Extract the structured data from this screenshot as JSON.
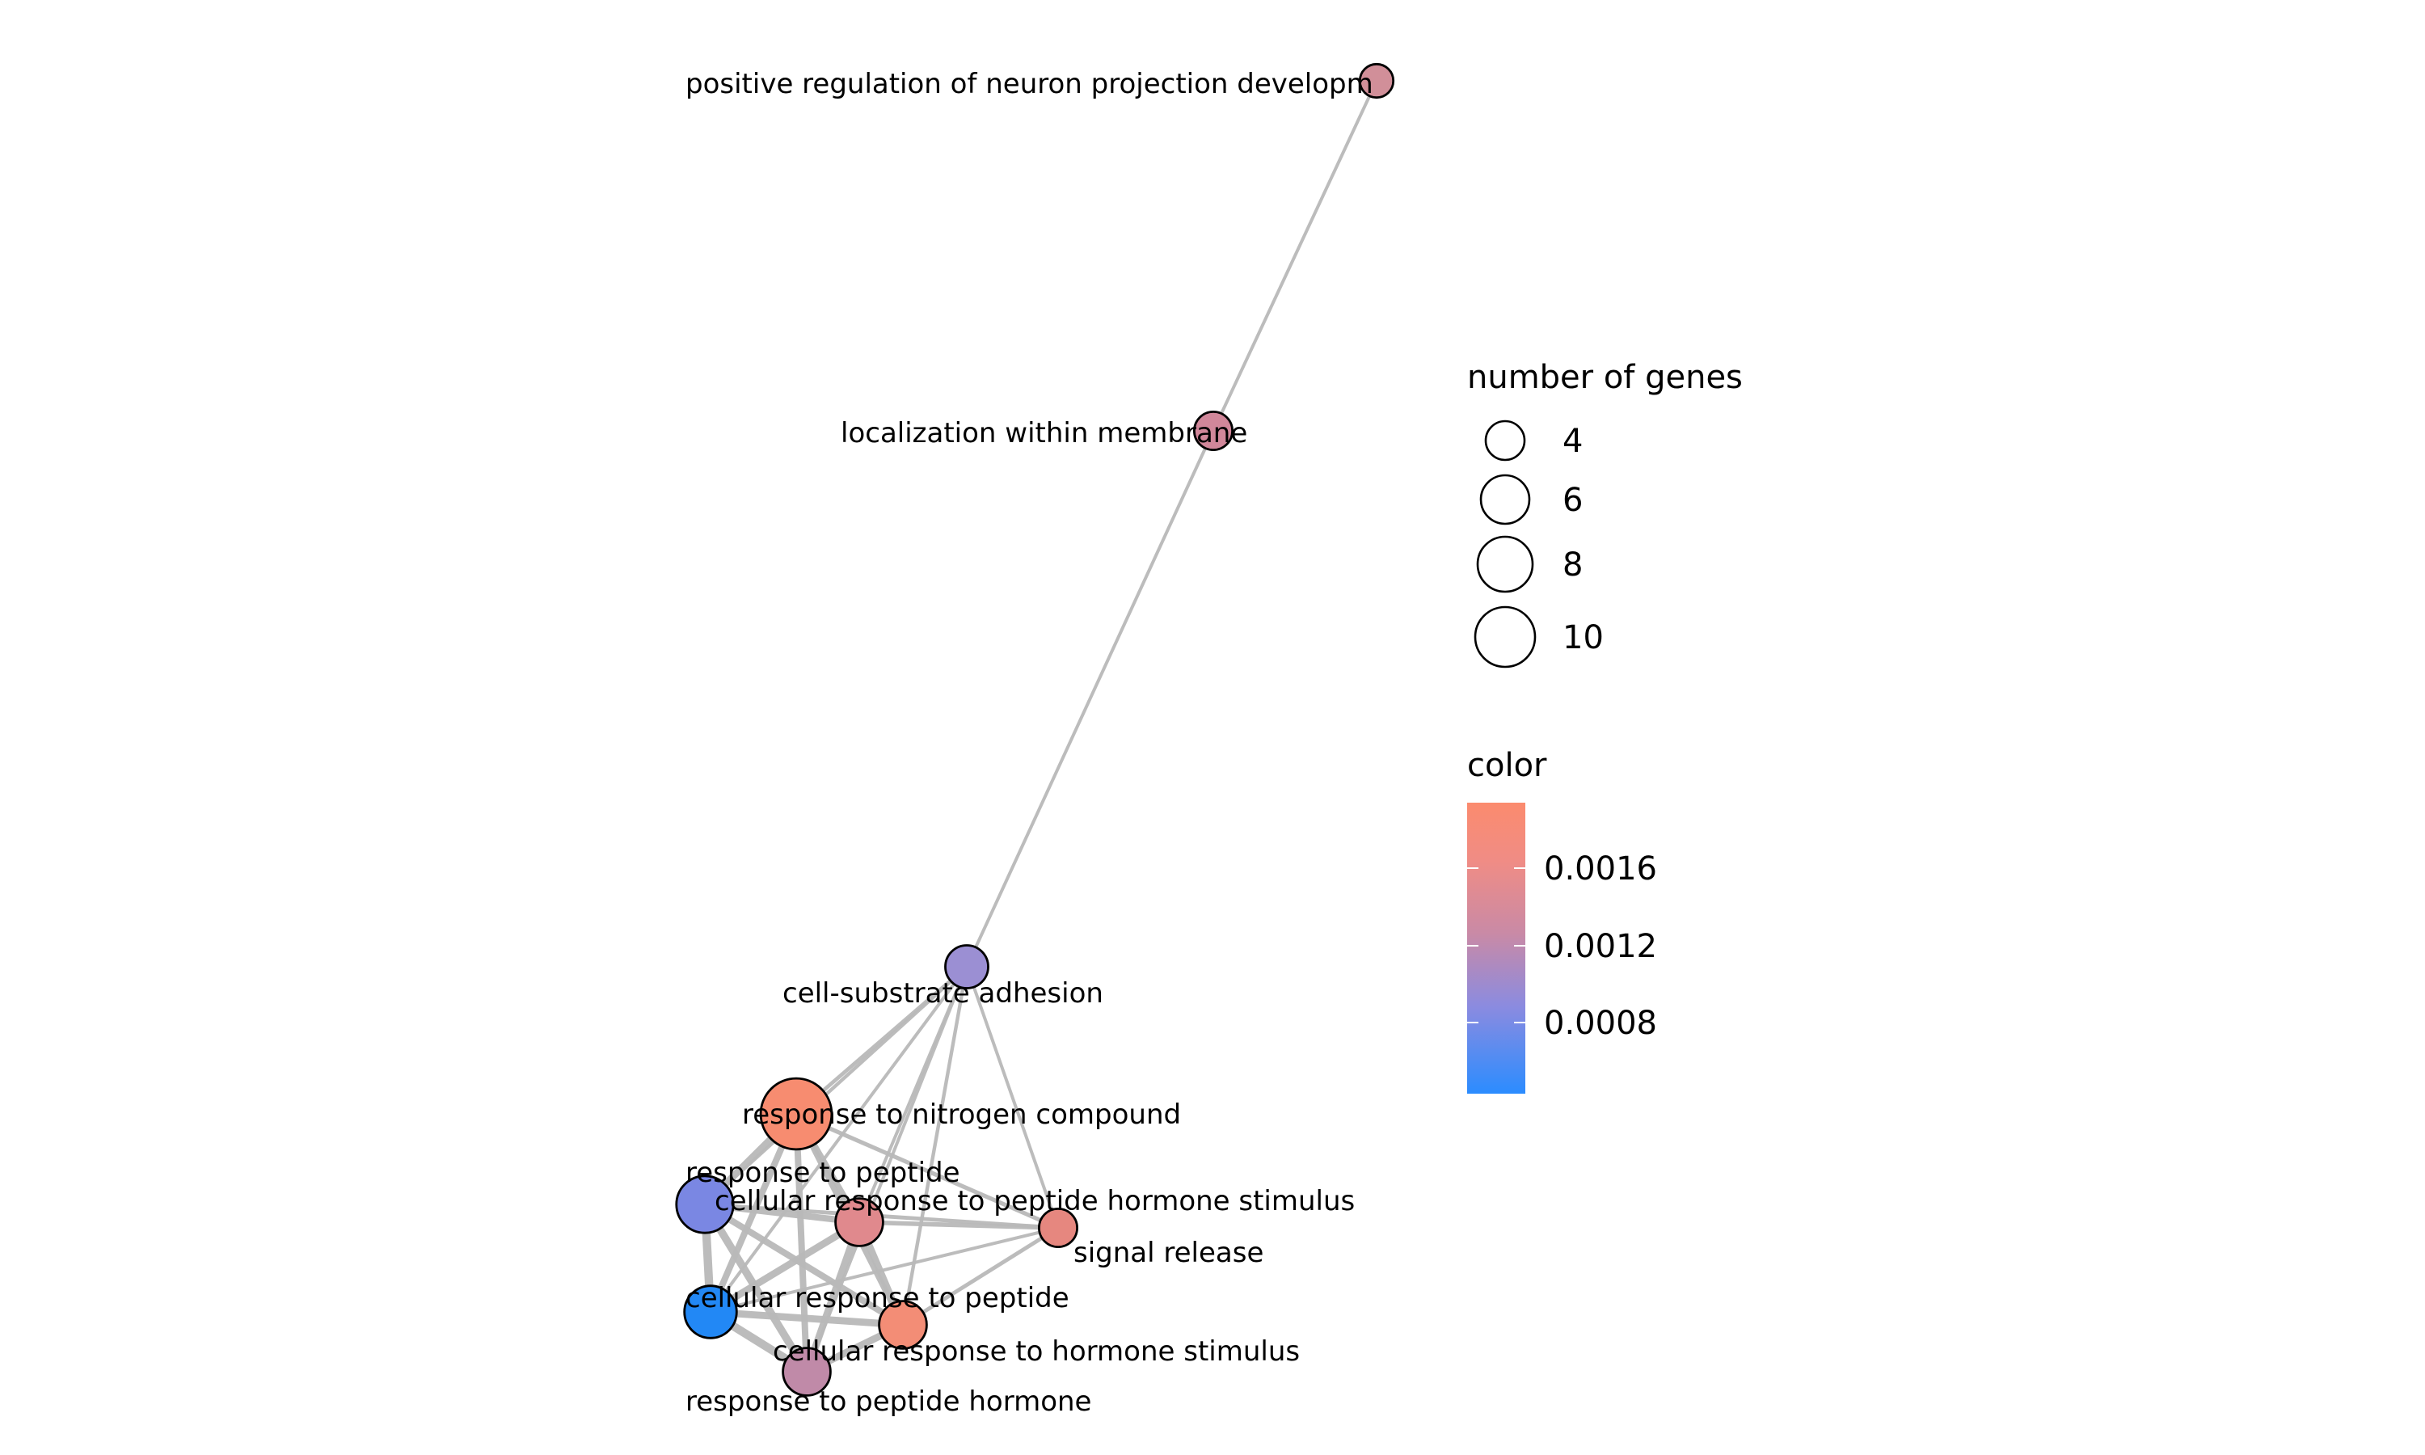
{
  "network": {
    "nodes": [
      {
        "id": "n_pos_reg",
        "label": "positive regulation of neuron projection developm",
        "genes": 3,
        "color": "#d18f99"
      },
      {
        "id": "n_loc_mem",
        "label": "localization within membrane",
        "genes": 4,
        "color": "#d1879a"
      },
      {
        "id": "n_cell_sub",
        "label": "cell-substrate adhesion",
        "genes": 5,
        "color": "#9b8fd3"
      },
      {
        "id": "n_resp_nitro",
        "label": "response to nitrogen compound",
        "genes": 11,
        "color": "#f78c70"
      },
      {
        "id": "n_resp_pep",
        "label": "response to peptide",
        "genes": 8,
        "color": "#7a87e3"
      },
      {
        "id": "n_cell_resp_pep_horm",
        "label": "cellular response to peptide hormone stimulus",
        "genes": 6,
        "color": "#e0898d"
      },
      {
        "id": "n_signal",
        "label": "signal release",
        "genes": 4,
        "color": "#e6877f"
      },
      {
        "id": "n_cell_resp_pep",
        "label": "cellular response to peptide",
        "genes": 7,
        "color": "#2288f5"
      },
      {
        "id": "n_cell_resp_horm",
        "label": "cellular response to hormone stimulus",
        "genes": 6,
        "color": "#f38d76"
      },
      {
        "id": "n_resp_pep_horm",
        "label": "response to peptide hormone",
        "genes": 6,
        "color": "#c08aa8"
      }
    ],
    "edges": [
      {
        "source": "n_pos_reg",
        "target": "n_loc_mem",
        "weight": 1.0
      },
      {
        "source": "n_loc_mem",
        "target": "n_cell_sub",
        "weight": 1.0
      },
      {
        "source": "n_cell_sub",
        "target": "n_resp_nitro",
        "weight": 1.2
      },
      {
        "source": "n_cell_sub",
        "target": "n_resp_pep",
        "weight": 1.1
      },
      {
        "source": "n_cell_sub",
        "target": "n_cell_resp_pep_horm",
        "weight": 1.0
      },
      {
        "source": "n_cell_sub",
        "target": "n_signal",
        "weight": 1.0
      },
      {
        "source": "n_cell_sub",
        "target": "n_cell_resp_pep",
        "weight": 1.0
      },
      {
        "source": "n_cell_sub",
        "target": "n_cell_resp_horm",
        "weight": 1.1
      },
      {
        "source": "n_cell_sub",
        "target": "n_resp_pep_horm",
        "weight": 1.0
      },
      {
        "source": "n_resp_nitro",
        "target": "n_resp_pep",
        "weight": 2.2
      },
      {
        "source": "n_resp_nitro",
        "target": "n_cell_resp_pep_horm",
        "weight": 1.8
      },
      {
        "source": "n_resp_nitro",
        "target": "n_signal",
        "weight": 1.3
      },
      {
        "source": "n_resp_nitro",
        "target": "n_cell_resp_pep",
        "weight": 2.0
      },
      {
        "source": "n_resp_nitro",
        "target": "n_cell_resp_horm",
        "weight": 1.8
      },
      {
        "source": "n_resp_nitro",
        "target": "n_resp_pep_horm",
        "weight": 2.0
      },
      {
        "source": "n_resp_pep",
        "target": "n_cell_resp_pep_horm",
        "weight": 2.0
      },
      {
        "source": "n_resp_pep",
        "target": "n_signal",
        "weight": 1.2
      },
      {
        "source": "n_resp_pep",
        "target": "n_cell_resp_pep",
        "weight": 2.6
      },
      {
        "source": "n_resp_pep",
        "target": "n_cell_resp_horm",
        "weight": 2.0
      },
      {
        "source": "n_resp_pep",
        "target": "n_resp_pep_horm",
        "weight": 2.4
      },
      {
        "source": "n_cell_resp_pep_horm",
        "target": "n_signal",
        "weight": 1.4
      },
      {
        "source": "n_cell_resp_pep_horm",
        "target": "n_cell_resp_pep",
        "weight": 2.2
      },
      {
        "source": "n_cell_resp_pep_horm",
        "target": "n_cell_resp_horm",
        "weight": 2.2
      },
      {
        "source": "n_cell_resp_pep_horm",
        "target": "n_resp_pep_horm",
        "weight": 2.2
      },
      {
        "source": "n_signal",
        "target": "n_cell_resp_horm",
        "weight": 1.2
      },
      {
        "source": "n_signal",
        "target": "n_cell_resp_pep",
        "weight": 1.0
      },
      {
        "source": "n_cell_resp_pep",
        "target": "n_cell_resp_horm",
        "weight": 2.2
      },
      {
        "source": "n_cell_resp_pep",
        "target": "n_resp_pep_horm",
        "weight": 2.6
      },
      {
        "source": "n_cell_resp_horm",
        "target": "n_resp_pep_horm",
        "weight": 2.2
      }
    ]
  },
  "legend": {
    "size": {
      "title": "number of genes",
      "entries": [
        {
          "value": 4,
          "label": "4"
        },
        {
          "value": 6,
          "label": "6"
        },
        {
          "value": 8,
          "label": "8"
        },
        {
          "value": 10,
          "label": "10"
        }
      ]
    },
    "color": {
      "title": "color",
      "gradient": [
        "#2b8cff",
        "#8b8be0",
        "#c98aa6",
        "#f08c85",
        "#fb8b6e"
      ],
      "ticks": [
        {
          "value": 0.0016,
          "label": "0.0016"
        },
        {
          "value": 0.0012,
          "label": "0.0012"
        },
        {
          "value": 0.0008,
          "label": "0.0008"
        }
      ]
    }
  }
}
